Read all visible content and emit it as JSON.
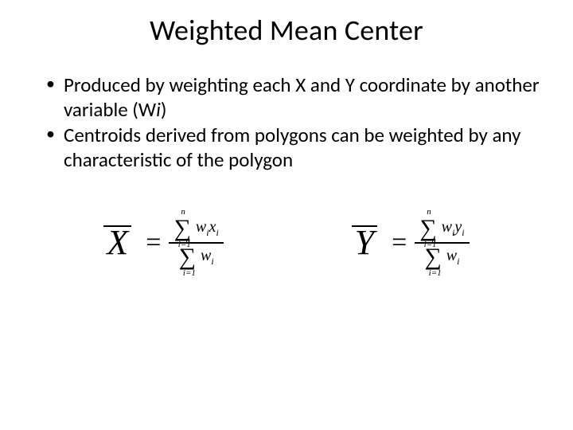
{
  "title": "Weighted Mean Center",
  "bullets": [
    {
      "pre": "Produced by weighting each X and Y coordinate by another variable (W",
      "ital": "i",
      "post": ")"
    },
    {
      "pre": "Centroids derived from polygons can be weighted by any characteristic of the polygon",
      "ital": "",
      "post": ""
    }
  ],
  "formula_x": {
    "lhs": "X",
    "sum_upper": "n",
    "sum_lower": "i=1",
    "num_term_a": "w",
    "num_term_a_sub": "i",
    "num_term_b": "x",
    "num_term_b_sub": "i",
    "den_term": "w",
    "den_term_sub": "i"
  },
  "formula_y": {
    "lhs": "Y",
    "sum_upper": "n",
    "sum_lower": "i=1",
    "num_term_a": "w",
    "num_term_a_sub": "i",
    "num_term_b": "y",
    "num_term_b_sub": "i",
    "den_term": "w",
    "den_term_sub": "i"
  },
  "colors": {
    "text": "#000000",
    "background": "#ffffff"
  },
  "fonts": {
    "body": "Calibri",
    "math": "Times New Roman"
  }
}
